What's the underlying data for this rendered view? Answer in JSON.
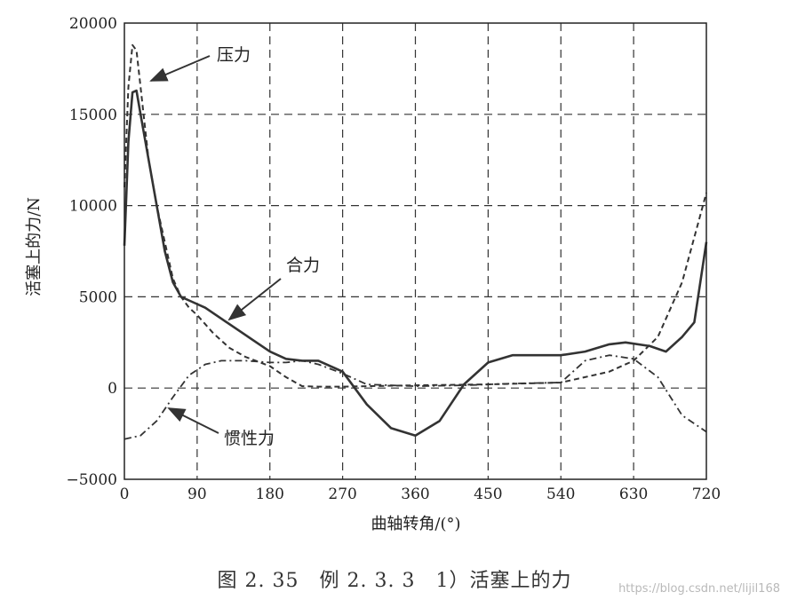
{
  "chart_data": {
    "type": "line",
    "title": "",
    "xlabel": "曲轴转角/(°)",
    "ylabel": "活塞上的力/N",
    "xlim": [
      0,
      720
    ],
    "ylim": [
      -5000,
      20000
    ],
    "xticks": [
      0,
      90,
      180,
      270,
      360,
      450,
      540,
      630,
      720
    ],
    "yticks": [
      -5000,
      0,
      5000,
      10000,
      15000,
      20000
    ],
    "xtick_labels": [
      "0",
      "90",
      "180",
      "270",
      "360",
      "450",
      "540",
      "630",
      "720"
    ],
    "ytick_labels": [
      "−5000",
      "0",
      "5000",
      "10000",
      "15000",
      "20000"
    ],
    "grid": true,
    "series": [
      {
        "name": "压力",
        "style": "dashed",
        "x": [
          0,
          5,
          10,
          15,
          20,
          25,
          30,
          40,
          50,
          60,
          70,
          80,
          90,
          110,
          130,
          150,
          180,
          200,
          220,
          240,
          270,
          300,
          360,
          450,
          540,
          570,
          600,
          630,
          660,
          690,
          720
        ],
        "y": [
          11000,
          16500,
          18800,
          18500,
          16500,
          14500,
          12500,
          10000,
          8000,
          6000,
          5000,
          4400,
          4000,
          3000,
          2200,
          1700,
          1200,
          600,
          100,
          80,
          80,
          100,
          150,
          200,
          300,
          600,
          900,
          1500,
          2800,
          5800,
          10700
        ]
      },
      {
        "name": "合力",
        "style": "solid",
        "x": [
          0,
          5,
          10,
          15,
          20,
          30,
          40,
          50,
          60,
          70,
          80,
          100,
          120,
          150,
          180,
          200,
          220,
          240,
          270,
          300,
          330,
          360,
          390,
          420,
          450,
          480,
          510,
          540,
          570,
          600,
          620,
          650,
          670,
          690,
          705,
          720
        ],
        "y": [
          7800,
          13500,
          16200,
          16300,
          15000,
          12500,
          10000,
          7500,
          5800,
          5000,
          4800,
          4400,
          3800,
          2900,
          2000,
          1600,
          1500,
          1500,
          900,
          -900,
          -2200,
          -2600,
          -1800,
          200,
          1400,
          1800,
          1800,
          1800,
          2000,
          2400,
          2500,
          2300,
          2000,
          2800,
          3600,
          8000
        ]
      },
      {
        "name": "惯性力",
        "style": "dashdot",
        "x": [
          0,
          20,
          40,
          60,
          80,
          100,
          120,
          150,
          180,
          200,
          220,
          240,
          270,
          300,
          360,
          420,
          450,
          480,
          540,
          570,
          600,
          630,
          660,
          690,
          720
        ],
        "y": [
          -2800,
          -2600,
          -1800,
          -500,
          700,
          1300,
          1500,
          1500,
          1400,
          1400,
          1500,
          1300,
          800,
          200,
          100,
          150,
          200,
          250,
          300,
          1500,
          1800,
          1600,
          600,
          -1500,
          -2400
        ]
      }
    ],
    "annotations": [
      "压力",
      "合力",
      "惯性力"
    ]
  },
  "figure_caption": "图 2. 35　例 2. 3. 3　1）活塞上的力",
  "watermark": "https://blog.csdn.net/lijil168"
}
